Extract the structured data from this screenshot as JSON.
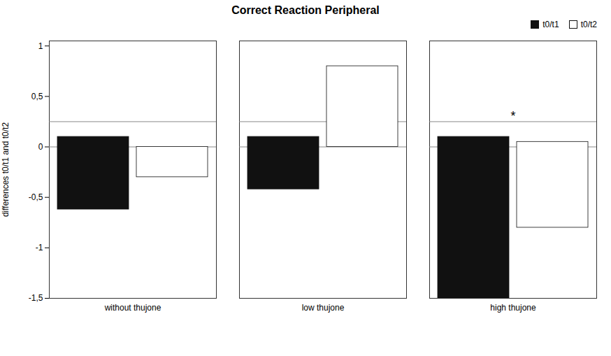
{
  "chart_data": {
    "type": "bar",
    "title": "Correct Reaction Peripheral",
    "ylabel": "differences t0/t1 and t0/t2",
    "categories": [
      "without thujone",
      "low thujone",
      "high thujone"
    ],
    "series": [
      {
        "name": "t0/t1",
        "color": "#111111",
        "bottom": [
          -0.62,
          -0.42,
          -1.5
        ],
        "top": [
          0.1,
          0.1,
          0.1
        ]
      },
      {
        "name": "t0/t2",
        "color": "#ffffff",
        "bottom": [
          -0.3,
          0.0,
          -0.8
        ],
        "top": [
          0.0,
          0.8,
          0.05
        ]
      }
    ],
    "ylim": [
      -1.5,
      1.05
    ],
    "yticks": [
      {
        "value": -1.5,
        "label": "-1,5"
      },
      -1,
      {
        "value": -0.5,
        "label": "-0,5"
      },
      0,
      {
        "value": 0.5,
        "label": "0,5"
      },
      1
    ],
    "reference_lines": [
      0,
      0.25
    ],
    "annotations": [
      {
        "text": "*",
        "category": "high thujone",
        "y": 0.25
      }
    ],
    "grid": false,
    "legend": "upper right"
  }
}
